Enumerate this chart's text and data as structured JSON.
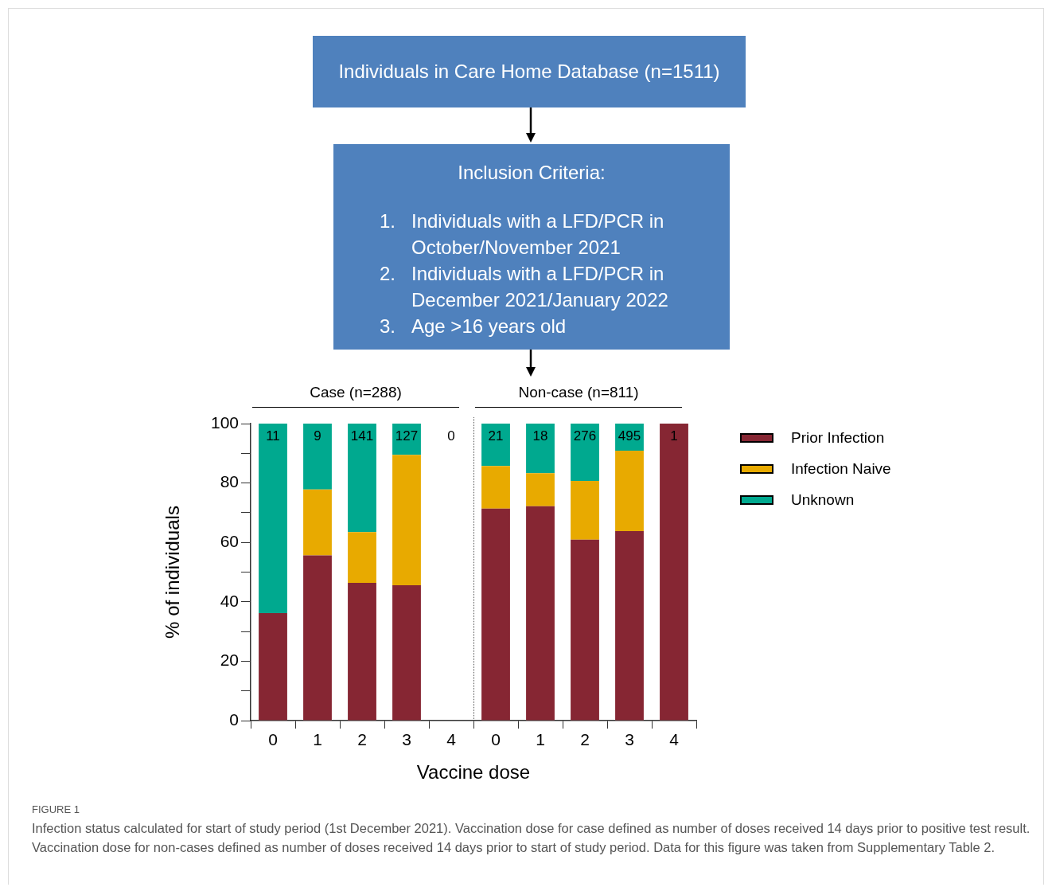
{
  "chart_data": {
    "type": "bar",
    "stacked": true,
    "ylabel": "% of individuals",
    "xlabel": "Vaccine dose",
    "categories": [
      "0",
      "1",
      "2",
      "3",
      "4",
      "0",
      "1",
      "2",
      "3",
      "4"
    ],
    "series": [
      {
        "name": "Prior Infection",
        "color": "#862633",
        "values": [
          36.2,
          55.6,
          46.4,
          45.6,
          0,
          71.4,
          72.2,
          60.9,
          63.8,
          100
        ]
      },
      {
        "name": "Infection Naive",
        "color": "#e8aa00",
        "values": [
          0,
          22.2,
          17.1,
          43.9,
          0,
          14.3,
          11.1,
          19.8,
          27.1,
          0
        ]
      },
      {
        "name": "Unknown",
        "color": "#00a98f",
        "values": [
          63.8,
          22.2,
          36.5,
          10.5,
          0,
          14.3,
          16.7,
          19.3,
          9.1,
          0
        ]
      }
    ],
    "ylim": [
      0,
      100
    ],
    "yticks": [
      0,
      {
        "value": 10,
        "label": null
      },
      20,
      {
        "value": 30,
        "label": null
      },
      40,
      {
        "value": 50,
        "label": null
      },
      60,
      {
        "value": 70,
        "label": null
      },
      80,
      {
        "value": 90,
        "label": null
      },
      100
    ],
    "grid": false,
    "legend": "right",
    "annotations": [
      "Individuals in Care Home Database (n=1511)",
      "Inclusion Criteria:",
      "1.",
      "Individuals with a LFD/PCR in October/November 2021",
      "2.",
      "Individuals with a LFD/PCR in December 2021/January 2022",
      "3.",
      "Age >16 years old",
      "FIGURE 1",
      "Infection status calculated for start of study period (1st December 2021). Vaccination dose for case defined as number of doses received 14 days prior to positive test result. Vaccination dose for non-cases defined as number of doses received 14 days prior to start of study period. Data for this figure was taken from Supplementary Table 2.",
      "Case (n=288)",
      "Non-case (n=811)",
      "11",
      "9",
      "141",
      "127",
      "0",
      "21",
      "18",
      "276",
      "495",
      "1"
    ]
  }
}
